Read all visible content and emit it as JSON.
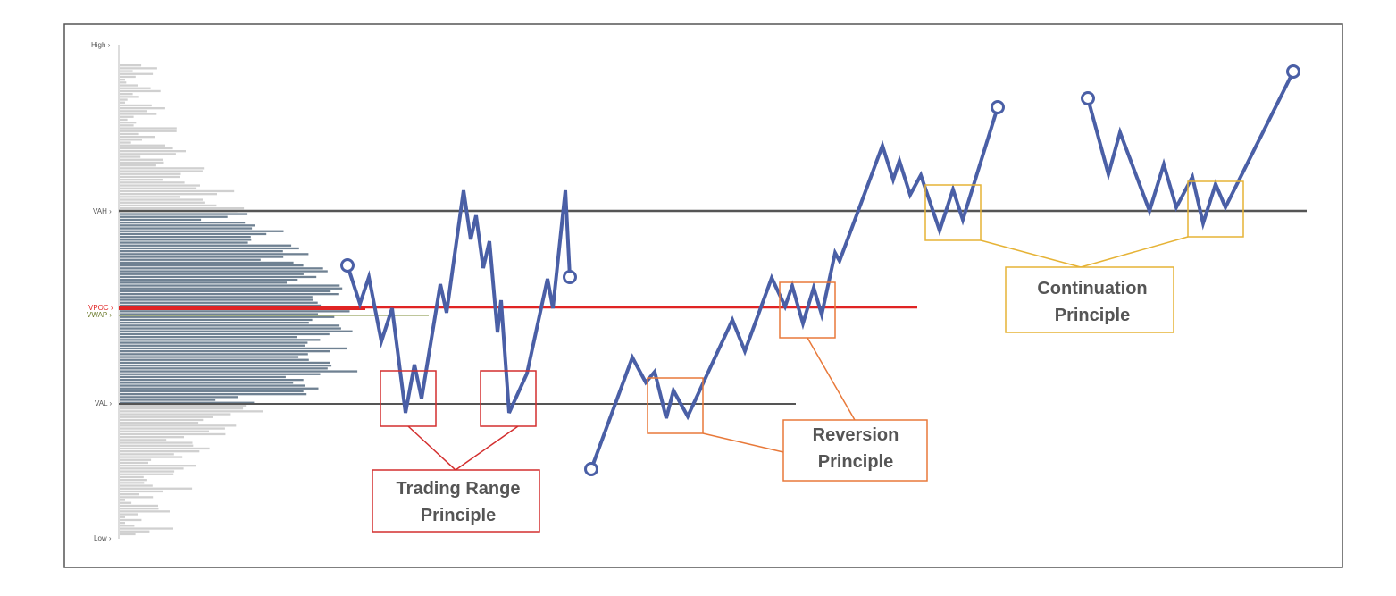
{
  "levels": {
    "high": "High",
    "vah": "VAH",
    "vpoc": "VPOC",
    "vwap": "VWAP",
    "val": "VAL",
    "low": "Low"
  },
  "principles": {
    "trading_range": {
      "line1": "Trading Range",
      "line2": "Principle"
    },
    "reversion": {
      "line1": "Reversion",
      "line2": "Principle"
    },
    "continuation": {
      "line1": "Continuation",
      "line2": "Principle"
    }
  },
  "colors": {
    "price_path": "#4a5fa6",
    "vpoc_line": "#e02424",
    "value_area_bars": "#6f8192",
    "outside_bars": "#d0d0d0",
    "level_lines": "#555555",
    "trading_range": "#d32f2f",
    "reversion": "#e8793a",
    "continuation": "#e6b336",
    "vwap_label": "#6b7a2a"
  },
  "arrow_glyph": "›"
}
